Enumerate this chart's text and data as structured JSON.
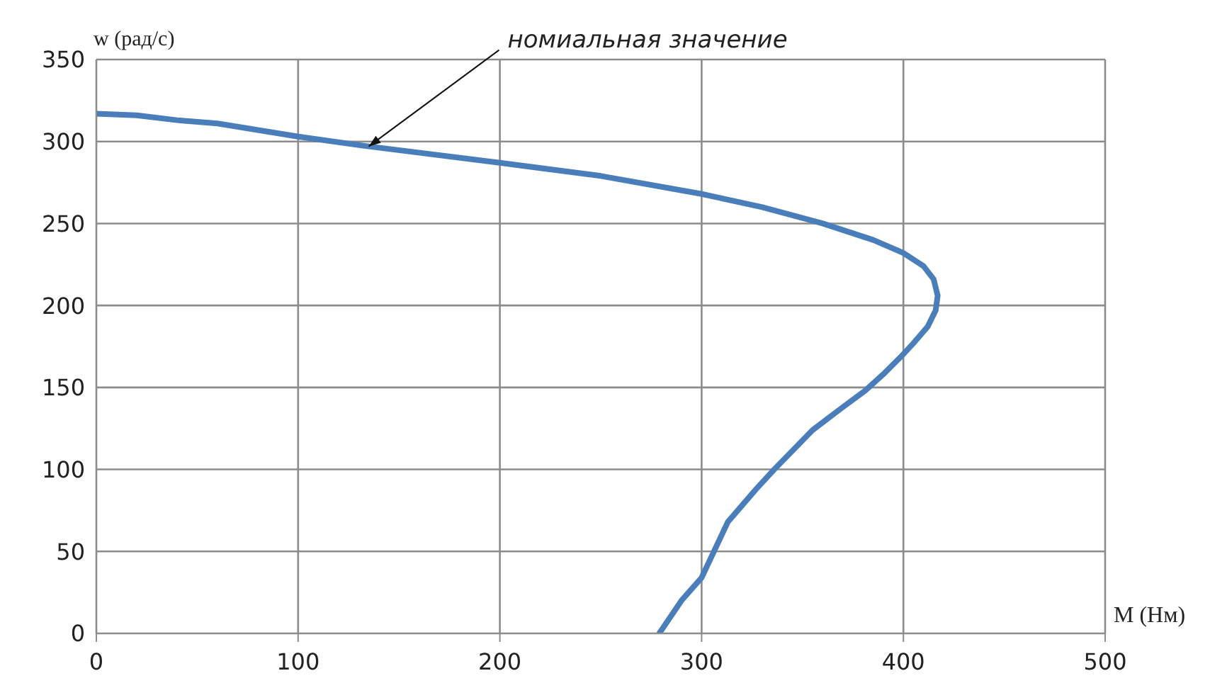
{
  "chart_data": {
    "type": "line",
    "xlabel": "M (Нм)",
    "ylabel": "w (рад/с)",
    "annotations": [
      {
        "text": "номиальная значение",
        "x": 135,
        "y": 297
      }
    ],
    "series": [
      {
        "color": "#4a7ebb",
        "x": [
          0,
          20,
          40,
          60,
          100,
          135,
          200,
          250,
          300,
          330,
          360,
          385,
          400,
          410,
          415,
          417,
          416,
          412,
          405,
          399,
          390,
          381,
          370,
          355,
          336,
          327,
          313,
          300,
          290,
          279
        ],
        "values": [
          317,
          316,
          313,
          311,
          303,
          297,
          287,
          279,
          268,
          260,
          250,
          240,
          232,
          224,
          216,
          206,
          197,
          187,
          177,
          169,
          158,
          148,
          138,
          124,
          100,
          88,
          68,
          34,
          20,
          0
        ]
      }
    ],
    "xlim": [
      0,
      500
    ],
    "xticks": [
      0,
      100,
      200,
      300,
      400,
      500
    ],
    "ylim": [
      0,
      350
    ],
    "yticks": [
      0,
      50,
      100,
      150,
      200,
      250,
      300,
      350
    ],
    "grid": true,
    "legend": false,
    "marker": "none",
    "line_style": "solid"
  }
}
